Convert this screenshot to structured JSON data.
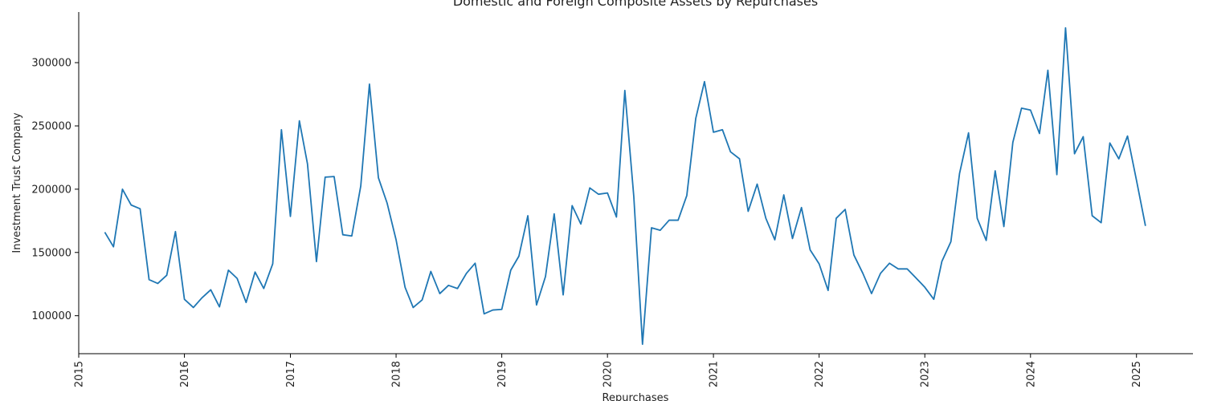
{
  "chart_data": {
    "type": "line",
    "title": "Domestic and Foreign Composite Assets by Repurchases",
    "xlabel": "Repurchases",
    "ylabel": "Investment Trust Company",
    "x_ticks": [
      "2015",
      "2016",
      "2017",
      "2018",
      "2019",
      "2020",
      "2021",
      "2022",
      "2023",
      "2024",
      "2025"
    ],
    "y_ticks": [
      "100000",
      "150000",
      "200000",
      "250000",
      "300000"
    ],
    "xlim": [
      "2015-01-01",
      "2025-07-15"
    ],
    "ylim": [
      70000,
      340000
    ],
    "grid": false,
    "line_color": "#1f77b4",
    "series": [
      {
        "x": [
          "2015-04",
          "2015-05",
          "2015-06",
          "2015-07",
          "2015-08",
          "2015-09",
          "2015-10",
          "2015-11",
          "2015-12",
          "2016-01",
          "2016-02",
          "2016-03",
          "2016-04",
          "2016-05",
          "2016-06",
          "2016-07",
          "2016-08",
          "2016-09",
          "2016-10",
          "2016-11",
          "2016-12",
          "2017-01",
          "2017-02",
          "2017-03",
          "2017-04",
          "2017-05",
          "2017-06",
          "2017-07",
          "2017-08",
          "2017-09",
          "2017-10",
          "2017-11",
          "2017-12",
          "2018-01",
          "2018-02",
          "2018-03",
          "2018-04",
          "2018-05",
          "2018-06",
          "2018-07",
          "2018-08",
          "2018-09",
          "2018-10",
          "2018-11",
          "2018-12",
          "2019-01",
          "2019-02",
          "2019-03",
          "2019-04",
          "2019-05",
          "2019-06",
          "2019-07",
          "2019-08",
          "2019-09",
          "2019-10",
          "2019-11",
          "2019-12",
          "2020-01",
          "2020-02",
          "2020-03",
          "2020-04",
          "2020-05",
          "2020-06",
          "2020-07",
          "2020-08",
          "2020-09",
          "2020-10",
          "2020-11",
          "2020-12",
          "2021-01",
          "2021-02",
          "2021-03",
          "2021-04",
          "2021-05",
          "2021-06",
          "2021-07",
          "2021-08",
          "2021-09",
          "2021-10",
          "2021-11",
          "2021-12",
          "2022-01",
          "2022-02",
          "2022-03",
          "2022-04",
          "2022-05",
          "2022-06",
          "2022-07",
          "2022-08",
          "2022-09",
          "2022-10",
          "2022-11",
          "2022-12",
          "2023-01",
          "2023-02",
          "2023-03",
          "2023-04",
          "2023-05",
          "2023-06",
          "2023-07",
          "2023-08",
          "2023-09",
          "2023-10",
          "2023-11",
          "2023-12",
          "2024-01",
          "2024-02",
          "2024-03",
          "2024-04",
          "2024-05",
          "2024-06",
          "2024-07",
          "2024-08",
          "2024-09",
          "2024-10",
          "2024-11",
          "2024-12",
          "2025-01",
          "2025-02"
        ],
        "y": [
          166000,
          154500,
          200000,
          187500,
          184500,
          128500,
          125500,
          132000,
          166500,
          113000,
          106500,
          114000,
          120500,
          107000,
          136000,
          129500,
          110500,
          134500,
          121500,
          141000,
          247000,
          178500,
          254000,
          220000,
          142800,
          209500,
          210000,
          164000,
          163000,
          202500,
          283000,
          209000,
          189000,
          160000,
          122500,
          106500,
          112500,
          135000,
          117500,
          124000,
          121500,
          133500,
          141500,
          101500,
          104500,
          105000,
          136000,
          147000,
          179000,
          108500,
          131000,
          180500,
          116500,
          187000,
          172500,
          201000,
          196000,
          197000,
          178000,
          278000,
          194000,
          77500,
          169500,
          167500,
          175500,
          175500,
          195000,
          256000,
          285000,
          245000,
          247000,
          229500,
          224000,
          182500,
          204000,
          177000,
          160000,
          195500,
          161000,
          185500,
          152000,
          141000,
          120000,
          177000,
          184000,
          148000,
          133500,
          117500,
          133500,
          141500,
          137000,
          137000,
          130000,
          122500,
          113000,
          143000,
          158500,
          212500,
          244500,
          177000,
          159500,
          214500,
          170500,
          237000,
          264000,
          262500,
          244000,
          294000,
          211500,
          327500,
          228000,
          241500,
          179000,
          173500,
          236500,
          224000,
          242000,
          207000,
          171000
        ]
      }
    ]
  }
}
